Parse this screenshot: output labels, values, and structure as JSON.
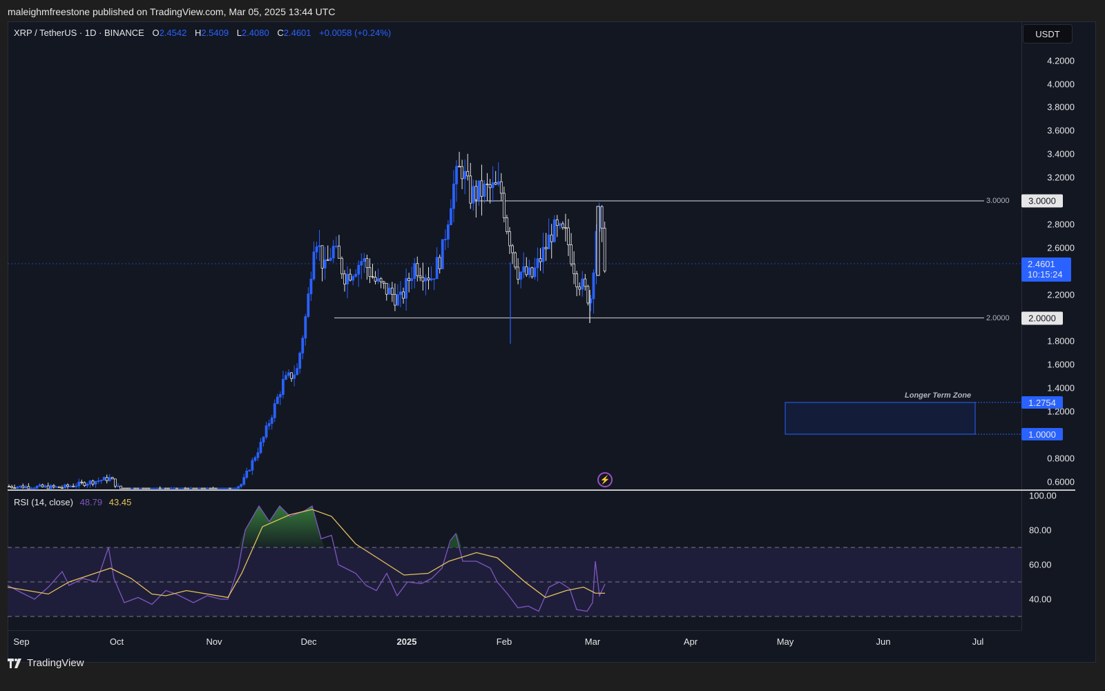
{
  "header": {
    "published": "maleighmfreestone published on TradingView.com, Mar 05, 2025 13:44 UTC"
  },
  "legend": {
    "symbol": "XRP / TetherUS · 1D · BINANCE",
    "open_label": "O",
    "open": "2.4542",
    "high_label": "H",
    "high": "2.5409",
    "low_label": "L",
    "low": "2.4080",
    "close_label": "C",
    "close": "2.4601",
    "change": "+0.0058 (+0.24%)"
  },
  "price_axis": {
    "currency": "USDT",
    "ticks": [
      "4.2000",
      "4.0000",
      "3.8000",
      "3.6000",
      "3.4000",
      "3.2000",
      "2.8000",
      "2.6000",
      "2.2000",
      "1.8000",
      "1.6000",
      "1.4000",
      "1.2000",
      "0.8000",
      "0.6000"
    ],
    "current_price": "2.4601",
    "countdown": "10:15:24",
    "level_3": "3.0000",
    "level_2": "2.0000",
    "zone_top": "1.2754",
    "zone_bottom": "1.0000"
  },
  "annotations": {
    "line_3_label": "3.0000",
    "line_2_label": "2.0000",
    "zone_label": "Longer Term Zone",
    "flash_icon": "⚡"
  },
  "rsi": {
    "title": "RSI (14, close)",
    "value": "48.79",
    "ma_value": "43.45",
    "ticks": [
      "100.00",
      "80.00",
      "60.00",
      "40.00"
    ]
  },
  "time_axis": {
    "labels": [
      "Sep",
      "Oct",
      "Nov",
      "Dec",
      "2025",
      "Feb",
      "Mar",
      "Apr",
      "May",
      "Jun",
      "Jul"
    ]
  },
  "footer": {
    "brand": "TradingView"
  },
  "colors": {
    "background": "#131722",
    "up": "#2962ff",
    "down": "#e6e6e6",
    "rsi": "#7e57c2",
    "rsi_ma": "#e6c35c",
    "overbought_fill": "#3b8a3e"
  },
  "chart_data": {
    "type": "candlestick",
    "title": "XRP / TetherUS · 1D · BINANCE",
    "x": [
      "Sep",
      "Oct",
      "Nov",
      "Dec",
      "2025",
      "Feb",
      "Mar",
      "Apr",
      "May",
      "Jun",
      "Jul"
    ],
    "ylabel": "USDT",
    "ylim": [
      0.5,
      4.4
    ],
    "horizontal_levels": [
      3.0,
      2.0
    ],
    "zone": {
      "label": "Longer Term Zone",
      "top": 1.2754,
      "bottom": 1.0
    },
    "last": {
      "open": 2.4542,
      "high": 2.5409,
      "low": 2.408,
      "close": 2.4601
    },
    "price_path": [
      {
        "date": "Sep",
        "close": 0.56
      },
      {
        "date": "Oct",
        "close": 0.62
      },
      {
        "date": "Oct-mid",
        "close": 0.53
      },
      {
        "date": "Nov",
        "close": 0.52
      },
      {
        "date": "Nov-mid",
        "close": 1.1
      },
      {
        "date": "Nov-end",
        "close": 1.55
      },
      {
        "date": "Dec-3",
        "close": 2.75
      },
      {
        "date": "Dec-mid",
        "close": 2.4
      },
      {
        "date": "2025",
        "close": 2.3
      },
      {
        "date": "Jan-16",
        "close": 3.3
      },
      {
        "date": "Feb",
        "close": 3.0
      },
      {
        "date": "Feb-3",
        "close": 2.6
      },
      {
        "date": "Feb-mid",
        "close": 2.75
      },
      {
        "date": "Feb-end",
        "close": 2.15
      },
      {
        "date": "Mar-2",
        "close": 2.95
      },
      {
        "date": "Mar-5",
        "close": 2.46
      }
    ],
    "rsi": {
      "ylim": [
        20,
        100
      ],
      "bands": [
        70,
        50,
        30
      ],
      "last_rsi": 48.79,
      "last_ma": 43.45
    }
  }
}
